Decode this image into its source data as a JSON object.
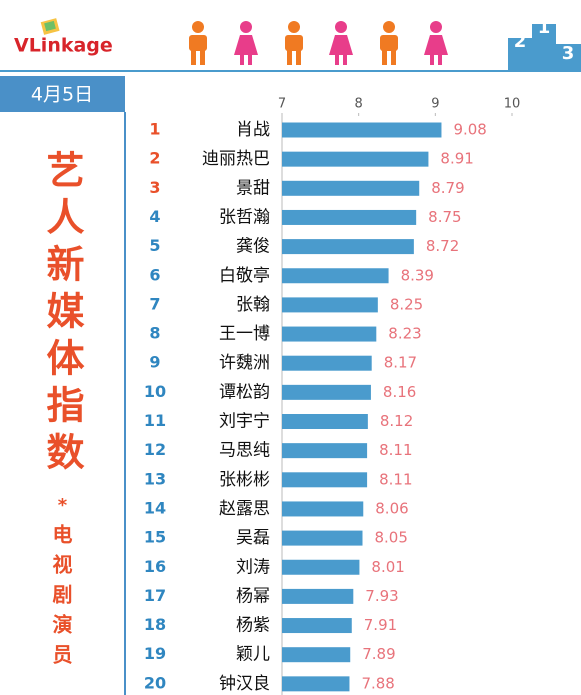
{
  "logo": "VLinkage",
  "date": "4月5日",
  "podium": [
    "2",
    "1",
    "3"
  ],
  "chart_data": {
    "type": "bar",
    "orientation": "horizontal",
    "title": "艺人新媒体指数",
    "note": "*",
    "subtitle": "电视剧演员",
    "ranks": [
      "1",
      "2",
      "3",
      "4",
      "5",
      "6",
      "7",
      "8",
      "9",
      "10",
      "11",
      "12",
      "13",
      "14",
      "15",
      "16",
      "17",
      "18",
      "19",
      "20"
    ],
    "categories": [
      "肖战",
      "迪丽热巴",
      "景甜",
      "张哲瀚",
      "龚俊",
      "白敬亭",
      "张翰",
      "王一博",
      "许魏洲",
      "谭松韵",
      "刘宇宁",
      "马思纯",
      "张彬彬",
      "赵露思",
      "吴磊",
      "刘涛",
      "杨幂",
      "杨紫",
      "颖儿",
      "钟汉良"
    ],
    "values": [
      9.08,
      8.91,
      8.79,
      8.75,
      8.72,
      8.39,
      8.25,
      8.23,
      8.17,
      8.16,
      8.12,
      8.11,
      8.11,
      8.06,
      8.05,
      8.01,
      7.93,
      7.91,
      7.89,
      7.88
    ],
    "color": "#4a9bcd",
    "value_label_color": "#e8737b",
    "top_rank_color": "#e9502a",
    "rank_color": "#2f86c0",
    "xlim": [
      7,
      10
    ],
    "xticks": [
      7,
      8,
      9,
      10
    ],
    "grid": false
  }
}
